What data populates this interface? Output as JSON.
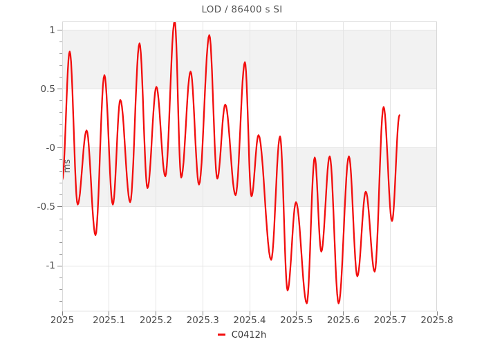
{
  "title": "LOD / 86400 s SI",
  "axes": {
    "y_label": "ms",
    "x_tick_labels": [
      "2025",
      "2025.1",
      "2025.2",
      "2025.3",
      "2025.4",
      "2025.5",
      "2025.6",
      "2025.7",
      "2025.8"
    ],
    "y_tick_labels": [
      "1",
      "0.5",
      "-0",
      "-0.5",
      "-1"
    ]
  },
  "legend": {
    "label": "C0412h",
    "marker_color": "#f20d0d"
  },
  "colors": {
    "line": "#f20d0d",
    "band": "#f2f2f2",
    "grid": "#e4e4e4",
    "frame": "#d9d9d9",
    "title_text": "#555555",
    "tick_text": "#4a4a4a"
  },
  "chart_data": {
    "type": "line",
    "title": "LOD / 86400 s SI",
    "xlabel": "",
    "ylabel": "ms",
    "xlim": [
      2025.0,
      2025.8
    ],
    "ylim": [
      -1.388,
      1.076
    ],
    "x_major_ticks": [
      2025.0,
      2025.1,
      2025.2,
      2025.3,
      2025.4,
      2025.5,
      2025.6,
      2025.7,
      2025.8
    ],
    "y_major_ticks": [
      1,
      0.5,
      0,
      -0.5,
      -1
    ],
    "y_minor_tick_step": 0.1,
    "y_minor_tick_range": [
      -1.3,
      0.9
    ],
    "bands": [
      [
        0.5,
        1
      ],
      [
        -0.5,
        0
      ]
    ],
    "grid": true,
    "legend_position": "bottom-center",
    "interpolation": "cosine-through-extrema",
    "series": [
      {
        "name": "C0412h",
        "color": "#f20d0d",
        "points": [
          [
            2025.0,
            -0.27
          ],
          [
            2025.016,
            0.82
          ],
          [
            2025.033,
            -0.48
          ],
          [
            2025.052,
            0.15
          ],
          [
            2025.071,
            -0.74
          ],
          [
            2025.09,
            0.62
          ],
          [
            2025.108,
            -0.48
          ],
          [
            2025.124,
            0.41
          ],
          [
            2025.145,
            -0.46
          ],
          [
            2025.165,
            0.89
          ],
          [
            2025.182,
            -0.34
          ],
          [
            2025.201,
            0.52
          ],
          [
            2025.22,
            -0.24
          ],
          [
            2025.24,
            1.08
          ],
          [
            2025.254,
            -0.25
          ],
          [
            2025.274,
            0.65
          ],
          [
            2025.292,
            -0.31
          ],
          [
            2025.314,
            0.96
          ],
          [
            2025.331,
            -0.26
          ],
          [
            2025.348,
            0.37
          ],
          [
            2025.37,
            -0.4
          ],
          [
            2025.39,
            0.73
          ],
          [
            2025.404,
            -0.41
          ],
          [
            2025.419,
            0.11
          ],
          [
            2025.446,
            -0.95
          ],
          [
            2025.465,
            0.1
          ],
          [
            2025.481,
            -1.21
          ],
          [
            2025.499,
            -0.46
          ],
          [
            2025.522,
            -1.32
          ],
          [
            2025.539,
            -0.08
          ],
          [
            2025.553,
            -0.88
          ],
          [
            2025.571,
            -0.07
          ],
          [
            2025.59,
            -1.32
          ],
          [
            2025.612,
            -0.07
          ],
          [
            2025.63,
            -1.09
          ],
          [
            2025.648,
            -0.37
          ],
          [
            2025.667,
            -1.05
          ],
          [
            2025.686,
            0.35
          ],
          [
            2025.704,
            -0.62
          ],
          [
            2025.72,
            0.28
          ]
        ]
      }
    ]
  }
}
